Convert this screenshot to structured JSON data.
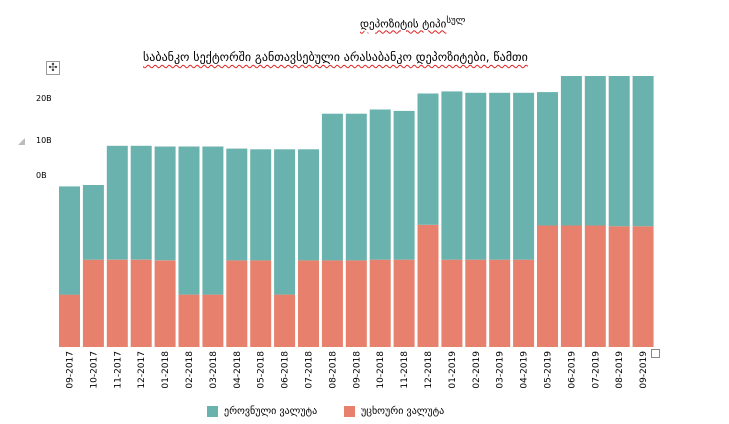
{
  "header": {
    "title_main": "დეპოზიტის ტიპი",
    "title_sup": "სულ"
  },
  "chart_data": {
    "type": "bar",
    "stacked": true,
    "title": "საბანკო სექტორში განთავსებული არასაბანკო დეპოზიტები, წამთი",
    "xlabel": "",
    "ylabel": "",
    "y_tick_labels": [
      "20B",
      "10B",
      "0B"
    ],
    "categories": [
      "09-2017",
      "10-2017",
      "11-2017",
      "12-2017",
      "01-2018",
      "02-2018",
      "03-2018",
      "04-2018",
      "05-2018",
      "06-2018",
      "07-2018",
      "08-2018",
      "09-2018",
      "10-2018",
      "11-2018",
      "12-2018",
      "01-2019",
      "02-2019",
      "03-2019",
      "04-2019",
      "05-2019",
      "06-2019",
      "07-2019",
      "08-2019",
      "09-2019"
    ],
    "series": [
      {
        "name": "უცხოური ვალუტა",
        "color": "#E8806E",
        "values": [
          7.5,
          12.5,
          12.5,
          12.5,
          12.4,
          7.5,
          7.5,
          12.4,
          12.4,
          7.5,
          12.4,
          12.4,
          12.4,
          12.5,
          12.5,
          17.5,
          12.5,
          12.5,
          12.5,
          12.5,
          17.4,
          17.4,
          17.4,
          17.3,
          17.3
        ]
      },
      {
        "name": "ეროვნული ვალუტა",
        "color": "#6AB2AD",
        "values": [
          15.5,
          10.7,
          16.3,
          16.3,
          16.3,
          21.2,
          21.2,
          16.0,
          15.9,
          20.8,
          15.9,
          21.0,
          21.0,
          21.5,
          21.3,
          18.8,
          24.1,
          23.9,
          23.9,
          23.9,
          19.1,
          21.4,
          21.4,
          21.5,
          21.5
        ]
      }
    ],
    "legend_position": "bottom",
    "grid": false
  }
}
